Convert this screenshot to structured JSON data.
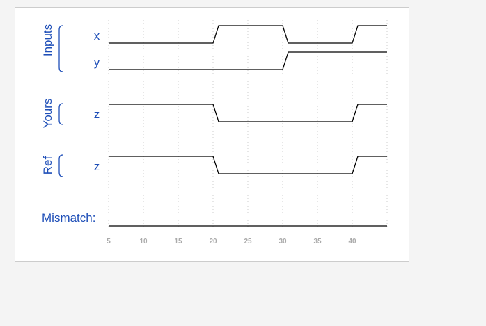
{
  "groups": [
    {
      "label": "Inputs",
      "signals": [
        "x",
        "y"
      ]
    },
    {
      "label": "Yours",
      "signals": [
        "z"
      ]
    },
    {
      "label": "Ref",
      "signals": [
        "z"
      ]
    }
  ],
  "mismatch_label": "Mismatch:",
  "chart_data": {
    "type": "line",
    "x_ticks": [
      5,
      10,
      15,
      20,
      25,
      30,
      35,
      40
    ],
    "xlim": [
      5,
      45
    ],
    "series": [
      {
        "name": "x",
        "group": "Inputs",
        "transitions": [
          [
            5,
            0
          ],
          [
            20,
            1
          ],
          [
            30,
            0
          ],
          [
            40,
            1
          ]
        ]
      },
      {
        "name": "y",
        "group": "Inputs",
        "transitions": [
          [
            5,
            0
          ],
          [
            30,
            1
          ]
        ]
      },
      {
        "name": "z",
        "group": "Yours",
        "transitions": [
          [
            5,
            1
          ],
          [
            20,
            0
          ],
          [
            40,
            1
          ]
        ]
      },
      {
        "name": "z",
        "group": "Ref",
        "transitions": [
          [
            5,
            1
          ],
          [
            20,
            0
          ],
          [
            40,
            1
          ]
        ]
      },
      {
        "name": "Mismatch",
        "group": "Mismatch",
        "transitions": [
          [
            5,
            0
          ]
        ]
      }
    ]
  },
  "colors": {
    "label": "#1f4fb8",
    "trace": "#000000",
    "grid": "#cccccc"
  }
}
